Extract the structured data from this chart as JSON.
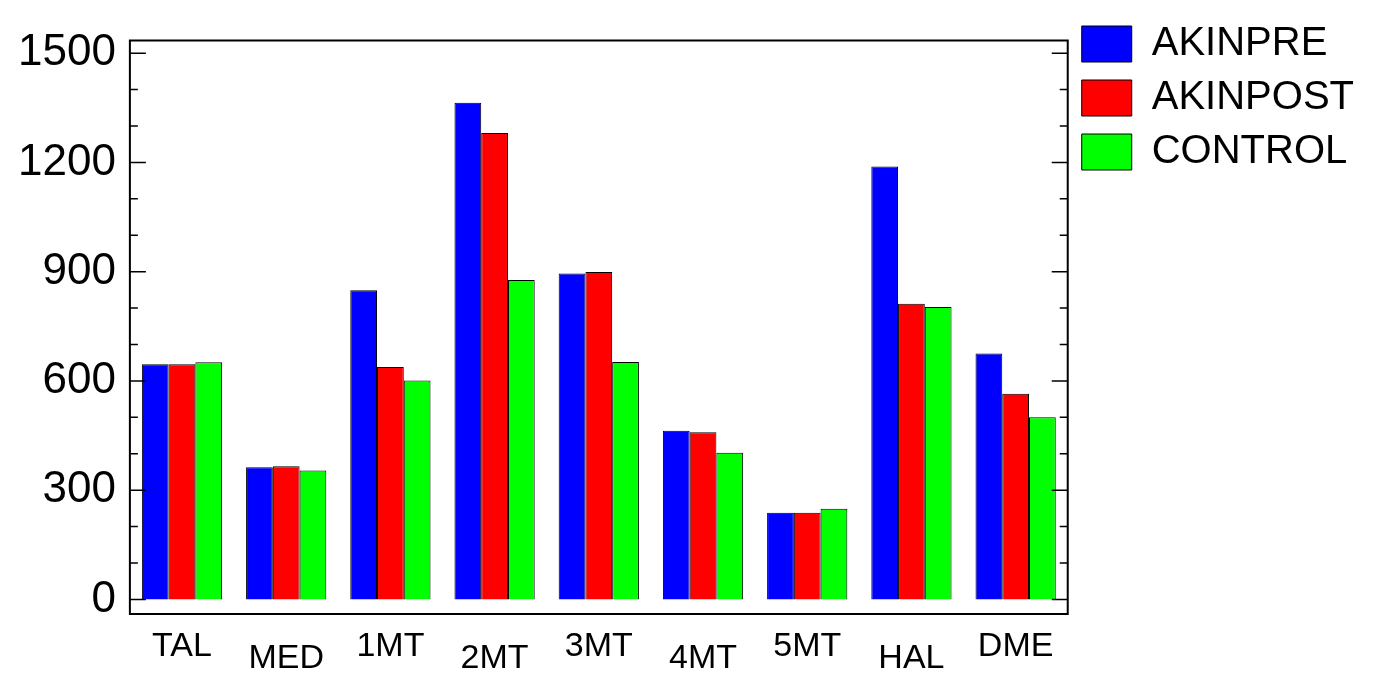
{
  "chart_data": {
    "type": "bar",
    "categories": [
      "TAL",
      "MED",
      "1MT",
      "2MT",
      "3MT",
      "4MT",
      "5MT",
      "HAL",
      "DME"
    ],
    "series": [
      {
        "name": "AKINPRE",
        "color": "#0000ff",
        "values": [
          646,
          363,
          849,
          1364,
          895,
          463,
          238,
          1189,
          675
        ]
      },
      {
        "name": "AKINPOST",
        "color": "#ff0000",
        "values": [
          646,
          366,
          638,
          1281,
          899,
          459,
          238,
          812,
          565
        ]
      },
      {
        "name": "CONTROL",
        "color": "#00ff00",
        "values": [
          651,
          354,
          601,
          877,
          652,
          403,
          249,
          803,
          500
        ]
      }
    ],
    "ylim": [
      -40,
      1535
    ],
    "yticks": [
      0,
      {
        "value": 100,
        "label": null
      },
      {
        "value": 200,
        "label": null
      },
      300,
      {
        "value": 400,
        "label": null
      },
      {
        "value": 500,
        "label": null
      },
      600,
      {
        "value": 700,
        "label": null
      },
      {
        "value": 800,
        "label": null
      },
      900,
      {
        "value": 1000,
        "label": null
      },
      {
        "value": 1100,
        "label": null
      },
      1200,
      {
        "value": 1300,
        "label": null
      },
      {
        "value": 1400,
        "label": null
      },
      1500
    ],
    "legend": "top right"
  }
}
